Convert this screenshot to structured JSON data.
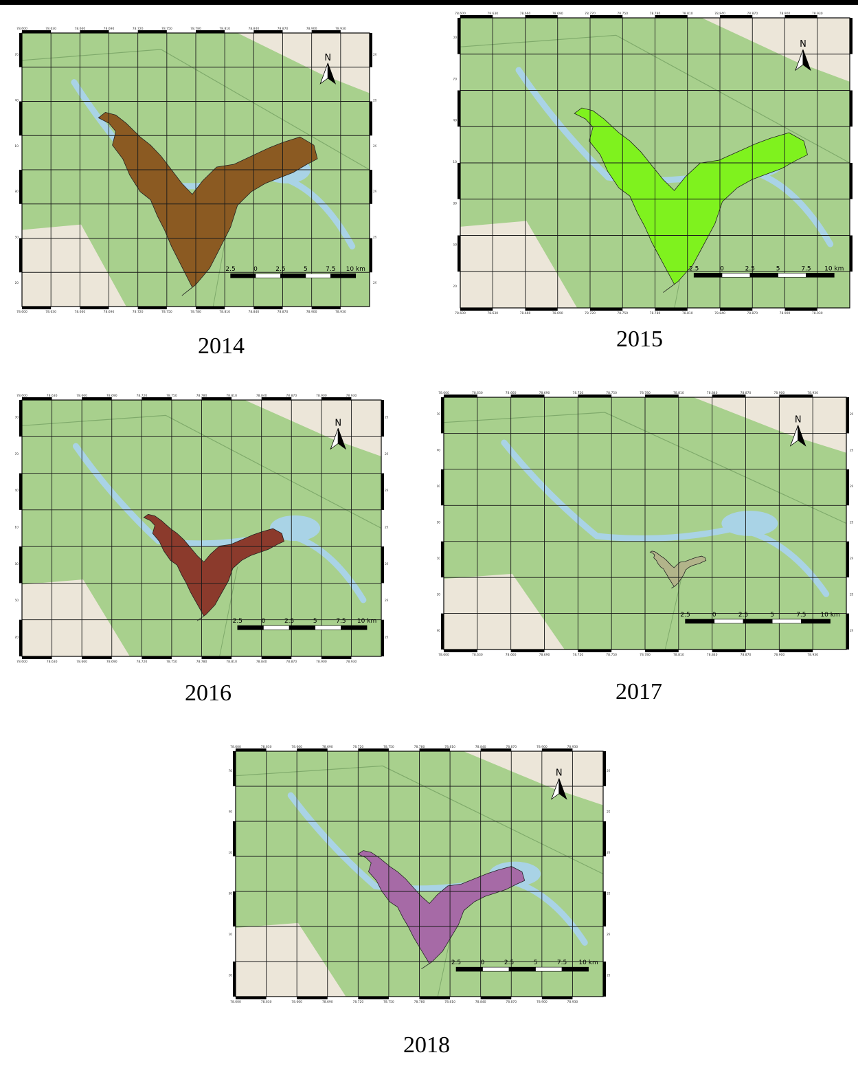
{
  "figure": {
    "north_label": "N",
    "scale_labels": [
      "2.5",
      "0",
      "2.5",
      "5",
      "7.5",
      "10 km"
    ],
    "colors": {
      "land": "#a8d08d",
      "urban": "#ece6d9",
      "water": "#a9d3e6",
      "grid": "#1a1a1a"
    },
    "panels": [
      {
        "year": "2014",
        "fill": "#8b5a22",
        "top_ticks": [
          "78.600",
          "78.630",
          "78.660",
          "78.690",
          "78.720",
          "78.750",
          "78.780",
          "78.810",
          "78.840",
          "78.870",
          "78.900",
          "78.930"
        ],
        "bottom_ticks": [
          "78.600",
          "78.630",
          "78.660",
          "78.690",
          "78.720",
          "78.750",
          "78.780",
          "78.810",
          "78.840",
          "78.870",
          "78.900",
          "78.930"
        ],
        "left_ticks": [
          "29.670",
          "29.640",
          "29.610",
          "29.580",
          "29.550",
          "29.520"
        ],
        "right_ticks": [
          "29.670",
          "29.640",
          "29.610",
          "29.580",
          "29.550",
          "29.520"
        ]
      },
      {
        "year": "2015",
        "fill": "#7ff21e",
        "top_ticks": [
          "78.600",
          "78.630",
          "78.660",
          "78.690",
          "78.720",
          "78.750",
          "78.780",
          "78.810",
          "78.840",
          "78.870",
          "78.900",
          "78.930"
        ],
        "bottom_ticks": [
          "78.600",
          "78.630",
          "78.660",
          "78.690",
          "78.720",
          "78.750",
          "78.780",
          "78.810",
          "78.840",
          "78.870",
          "78.900",
          "78.930"
        ],
        "left_ticks": [
          "29.700",
          "29.670",
          "29.640",
          "29.610",
          "29.580",
          "29.550",
          "29.520"
        ],
        "right_ticks": []
      },
      {
        "year": "2016",
        "fill": "#8b3a2c",
        "top_ticks": [
          "78.600",
          "78.630",
          "78.660",
          "78.690",
          "78.720",
          "78.750",
          "78.780",
          "78.810",
          "78.840",
          "78.870",
          "78.900",
          "78.930"
        ],
        "bottom_ticks": [
          "78.600",
          "78.630",
          "78.660",
          "78.690",
          "78.720",
          "78.750",
          "78.780",
          "78.810",
          "78.840",
          "78.870",
          "78.900",
          "78.930"
        ],
        "left_ticks": [
          "29.700",
          "29.670",
          "29.640",
          "29.610",
          "29.580",
          "29.550",
          "29.520"
        ],
        "right_ticks": [
          "29.700",
          "29.670",
          "29.640",
          "29.610",
          "29.580",
          "29.550",
          "29.520"
        ]
      },
      {
        "year": "2017",
        "fill": "#b2b48a",
        "top_ticks": [
          "78.600",
          "78.630",
          "78.660",
          "78.690",
          "78.720",
          "78.750",
          "78.780",
          "78.810",
          "78.840",
          "78.870",
          "78.900",
          "78.930"
        ],
        "bottom_ticks": [
          "78.600",
          "78.630",
          "78.660",
          "78.690",
          "78.720",
          "78.750",
          "78.780",
          "78.810",
          "78.840",
          "78.870",
          "78.900",
          "78.930"
        ],
        "left_ticks": [
          "29.670",
          "29.640",
          "29.610",
          "29.580",
          "29.550",
          "29.520",
          "29.490"
        ],
        "right_ticks": [
          "29.670",
          "29.640",
          "29.610",
          "29.580",
          "29.550",
          "29.520",
          "29.490"
        ]
      },
      {
        "year": "2018",
        "fill": "#a66aa6",
        "top_ticks": [
          "78.600",
          "78.630",
          "78.660",
          "78.690",
          "78.720",
          "78.750",
          "78.780",
          "78.810",
          "78.840",
          "78.870",
          "78.900",
          "78.930"
        ],
        "bottom_ticks": [
          "78.600",
          "78.630",
          "78.660",
          "78.690",
          "78.720",
          "78.750",
          "78.780",
          "78.810",
          "78.840",
          "78.870",
          "78.900",
          "78.930"
        ],
        "left_ticks": [
          "29.670",
          "29.640",
          "29.610",
          "29.580",
          "29.550",
          "29.520"
        ],
        "right_ticks": [
          "29.670",
          "29.640",
          "29.610",
          "29.580",
          "29.550",
          "29.520"
        ]
      }
    ]
  }
}
